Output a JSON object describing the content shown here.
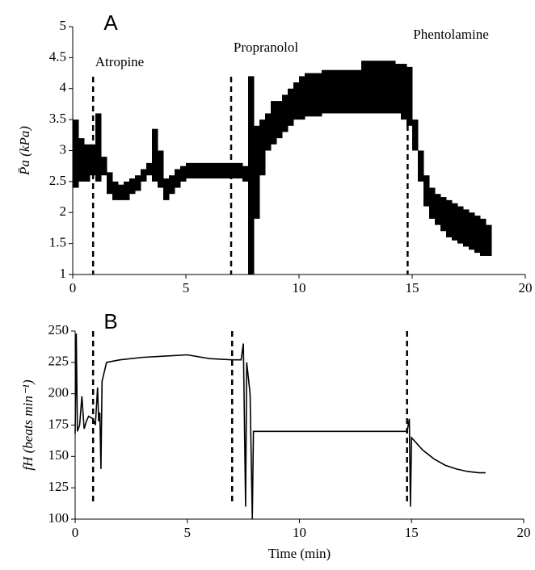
{
  "chart_data": [
    {
      "type": "range",
      "panel_label": "A",
      "ylabel": "P̄a (kPa)",
      "color": "#000000",
      "xlim": [
        0,
        20
      ],
      "xticks": [
        0,
        5,
        10,
        15,
        20
      ],
      "ylim": [
        1,
        5
      ],
      "yticks": [
        1,
        1.5,
        2,
        2.5,
        3,
        3.5,
        4,
        4.5,
        5
      ],
      "events": [
        {
          "x": 0.9,
          "label": "Atropine"
        },
        {
          "x": 7.0,
          "label": "Propranolol"
        },
        {
          "x": 14.8,
          "label": "Phentolamine"
        }
      ],
      "x": [
        0,
        0.25,
        0.5,
        0.75,
        1,
        1.25,
        1.5,
        1.75,
        2,
        2.25,
        2.5,
        2.75,
        3,
        3.25,
        3.5,
        3.75,
        4,
        4.25,
        4.5,
        4.75,
        5,
        5.25,
        5.5,
        5.75,
        6,
        6.25,
        6.5,
        6.75,
        7,
        7.25,
        7.5,
        7.75,
        8,
        8.25,
        8.5,
        8.75,
        9,
        9.25,
        9.5,
        9.75,
        10,
        10.25,
        10.5,
        10.75,
        11,
        11.25,
        11.5,
        11.75,
        12,
        12.25,
        12.5,
        12.75,
        13,
        13.25,
        13.5,
        13.75,
        14,
        14.25,
        14.5,
        14.75,
        15,
        15.25,
        15.5,
        15.75,
        16,
        16.25,
        16.5,
        16.75,
        17,
        17.25,
        17.5,
        17.75,
        18,
        18.25
      ],
      "low": [
        2.4,
        2.5,
        2.5,
        2.6,
        2.5,
        2.6,
        2.3,
        2.2,
        2.2,
        2.2,
        2.3,
        2.35,
        2.5,
        2.6,
        2.5,
        2.4,
        2.2,
        2.3,
        2.4,
        2.5,
        2.55,
        2.55,
        2.55,
        2.55,
        2.55,
        2.55,
        2.55,
        2.55,
        2.55,
        2.55,
        2.5,
        1.0,
        1.9,
        2.6,
        3.0,
        3.1,
        3.2,
        3.3,
        3.4,
        3.5,
        3.5,
        3.55,
        3.55,
        3.55,
        3.6,
        3.6,
        3.6,
        3.6,
        3.6,
        3.6,
        3.6,
        3.6,
        3.6,
        3.6,
        3.6,
        3.6,
        3.6,
        3.6,
        3.5,
        3.4,
        3.0,
        2.5,
        2.1,
        1.9,
        1.8,
        1.7,
        1.6,
        1.55,
        1.5,
        1.45,
        1.4,
        1.35,
        1.3,
        1.3
      ],
      "high": [
        3.5,
        3.2,
        3.1,
        3.1,
        3.6,
        2.9,
        2.65,
        2.5,
        2.45,
        2.5,
        2.55,
        2.6,
        2.7,
        2.8,
        3.35,
        3.0,
        2.55,
        2.6,
        2.7,
        2.75,
        2.8,
        2.8,
        2.8,
        2.8,
        2.8,
        2.8,
        2.8,
        2.8,
        2.8,
        2.8,
        2.75,
        4.2,
        3.4,
        3.5,
        3.6,
        3.8,
        3.8,
        3.9,
        4.0,
        4.1,
        4.2,
        4.25,
        4.25,
        4.25,
        4.3,
        4.3,
        4.3,
        4.3,
        4.3,
        4.3,
        4.3,
        4.45,
        4.45,
        4.45,
        4.45,
        4.45,
        4.45,
        4.4,
        4.4,
        4.35,
        3.5,
        3.0,
        2.6,
        2.4,
        2.3,
        2.25,
        2.2,
        2.15,
        2.1,
        2.05,
        2.0,
        1.95,
        1.9,
        1.8
      ]
    },
    {
      "type": "line",
      "panel_label": "B",
      "ylabel": "fH (beats min⁻¹)",
      "xlabel": "Time (min)",
      "color": "#000000",
      "xlim": [
        0,
        20
      ],
      "xticks": [
        0,
        5,
        10,
        15,
        20
      ],
      "ylim": [
        100,
        250
      ],
      "yticks": [
        100,
        125,
        150,
        175,
        200,
        225,
        250
      ],
      "event_lines": [
        0.8,
        7.0,
        14.8
      ],
      "x": [
        0,
        0.05,
        0.1,
        0.2,
        0.3,
        0.4,
        0.5,
        0.6,
        0.8,
        0.9,
        1.0,
        1.05,
        1.1,
        1.15,
        1.2,
        1.4,
        2,
        3,
        4,
        5,
        6,
        7,
        7.4,
        7.5,
        7.6,
        7.65,
        7.8,
        7.9,
        7.95,
        9,
        12,
        14.8,
        14.9,
        14.95,
        15.0,
        15.5,
        16,
        16.5,
        17,
        17.5,
        18,
        18.3
      ],
      "values": [
        168,
        248,
        170,
        175,
        198,
        172,
        178,
        182,
        180,
        175,
        205,
        178,
        185,
        140,
        210,
        225,
        227,
        229,
        230,
        231,
        228,
        227,
        227,
        240,
        110,
        225,
        200,
        100,
        170,
        170,
        170,
        170,
        180,
        110,
        165,
        155,
        148,
        143,
        140,
        138,
        137,
        137
      ]
    }
  ]
}
